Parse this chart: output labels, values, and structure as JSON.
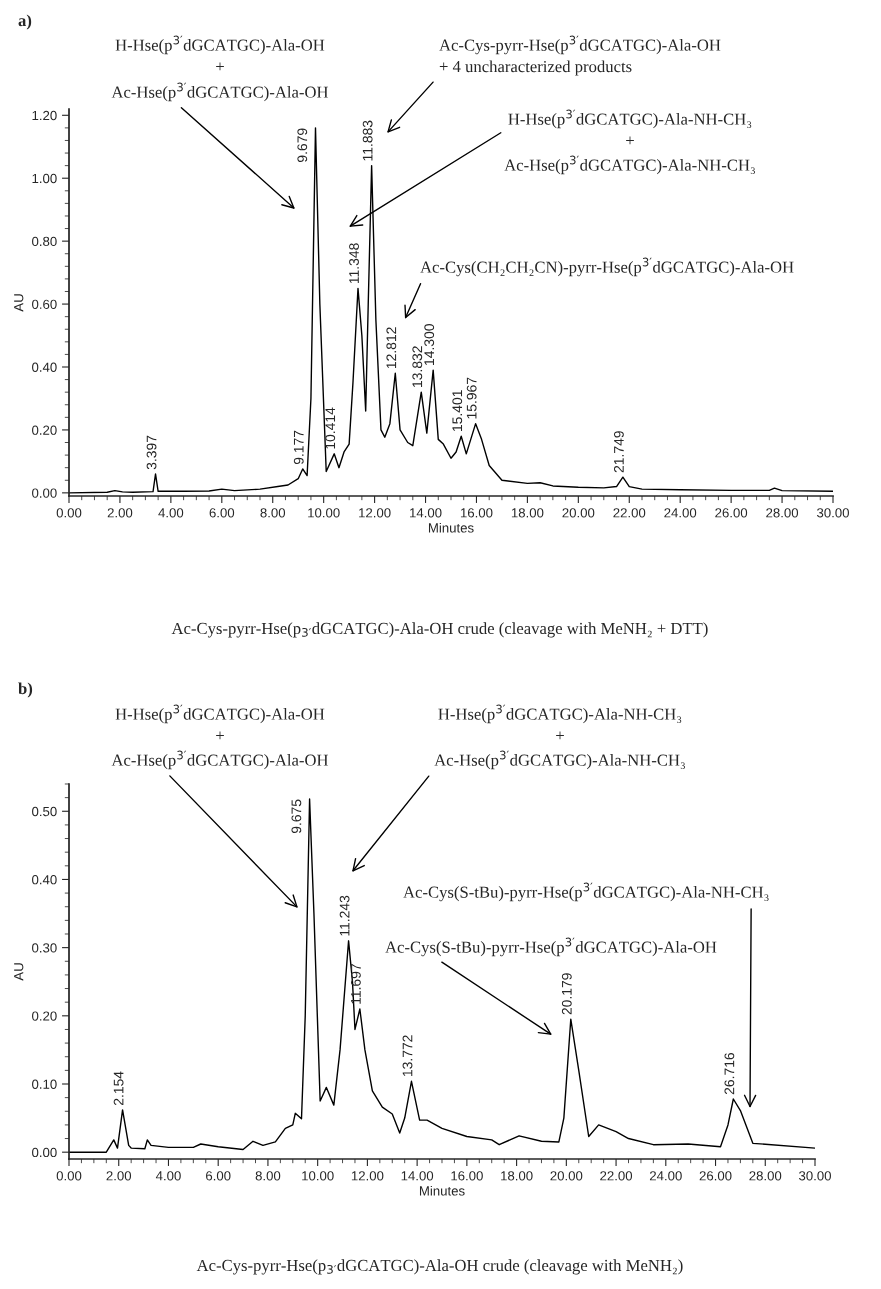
{
  "chart_data": [
    {
      "type": "line",
      "title": "a)",
      "xlabel": "Minutes",
      "ylabel": "AU",
      "series": [
        {
          "color": "#000000",
          "x": [
            0,
            1.5,
            1.8,
            2.1,
            2.5,
            3.3,
            3.397,
            3.5,
            4.5,
            5.5,
            6.0,
            6.5,
            7.5,
            8.2,
            8.6,
            9.0,
            9.177,
            9.35,
            9.5,
            9.679,
            9.85,
            10.1,
            10.414,
            10.6,
            10.8,
            11.0,
            11.15,
            11.348,
            11.5,
            11.65,
            11.75,
            11.883,
            12.05,
            12.25,
            12.4,
            12.6,
            12.812,
            13.0,
            13.3,
            13.5,
            13.832,
            14.05,
            14.3,
            14.5,
            14.7,
            15.0,
            15.2,
            15.401,
            15.6,
            15.967,
            16.2,
            16.5,
            17.0,
            18.0,
            18.5,
            19.0,
            20.0,
            21.0,
            21.5,
            21.749,
            22.0,
            22.5,
            24.0,
            26.0,
            27.5,
            27.7,
            28.0,
            30.0
          ],
          "values": [
            0.0,
            0.002,
            0.007,
            0.003,
            0.002,
            0.004,
            0.06,
            0.005,
            0.005,
            0.006,
            0.012,
            0.007,
            0.012,
            0.02,
            0.025,
            0.045,
            0.076,
            0.055,
            0.3,
            1.16,
            0.6,
            0.068,
            0.124,
            0.08,
            0.13,
            0.155,
            0.35,
            0.65,
            0.5,
            0.26,
            0.6,
            1.04,
            0.55,
            0.2,
            0.177,
            0.22,
            0.38,
            0.2,
            0.16,
            0.15,
            0.32,
            0.19,
            0.39,
            0.17,
            0.155,
            0.11,
            0.13,
            0.18,
            0.124,
            0.22,
            0.17,
            0.087,
            0.04,
            0.03,
            0.032,
            0.022,
            0.018,
            0.016,
            0.02,
            0.05,
            0.02,
            0.012,
            0.01,
            0.008,
            0.008,
            0.015,
            0.007,
            0.005
          ]
        }
      ],
      "xlim": [
        0,
        30
      ],
      "ylim": [
        -0.01,
        1.22
      ],
      "xticks": [
        {
          "value": 0,
          "label": "0.00"
        },
        {
          "value": 2,
          "label": "2.00"
        },
        {
          "value": 4,
          "label": "4.00"
        },
        {
          "value": 6,
          "label": "6.00"
        },
        {
          "value": 8,
          "label": "8.00"
        },
        {
          "value": 10,
          "label": "10.00"
        },
        {
          "value": 12,
          "label": "12.00"
        },
        {
          "value": 14,
          "label": "14.00"
        },
        {
          "value": 16,
          "label": "16.00"
        },
        {
          "value": 18,
          "label": "18.00"
        },
        {
          "value": 20,
          "label": "20.00"
        },
        {
          "value": 22,
          "label": "22.00"
        },
        {
          "value": 24,
          "label": "24.00"
        },
        {
          "value": 26,
          "label": "26.00"
        },
        {
          "value": 28,
          "label": "28.00"
        },
        {
          "value": 30,
          "label": "30.00"
        }
      ],
      "yticks": [
        {
          "value": 0,
          "label": "0.00"
        },
        {
          "value": 0.2,
          "label": "0.20"
        },
        {
          "value": 0.4,
          "label": "0.40"
        },
        {
          "value": 0.6,
          "label": "0.60"
        },
        {
          "value": 0.8,
          "label": "0.80"
        },
        {
          "value": 1.0,
          "label": "1.00"
        },
        {
          "value": 1.2,
          "label": "1.20"
        }
      ],
      "annotations": [
        "H-Hse(p$^{3′}$dGCATGC)-Ala-OH",
        "+",
        "Ac-Hse(p$^{3′}$dGCATGC)-Ala-OH",
        "Ac-Cys-pyrr-Hse(p$^{3′}$dGCATGC)-Ala-OH",
        "+ 4 uncharacterized products",
        "H-Hse(p$^{3′}$dGCATGC)-Ala-NH-CH₃",
        "+",
        "Ac-Hse(p$^{3′}$dGCATGC)-Ala-NH-CH₃",
        "Ac-Cys(CH₂CH₂CN)-pyrr-Hse(p$^{3′}$dGCATGC)-Ala-OH",
        {
          "text": "3.397",
          "x": 3.397,
          "y": 0.06
        },
        {
          "text": "9.177",
          "x": 9.177,
          "y": 0.076
        },
        {
          "text": "9.679",
          "x": 9.679,
          "y": 1.16
        },
        {
          "text": "10.414",
          "x": 10.414,
          "y": 0.124
        },
        {
          "text": "11.348",
          "x": 11.348,
          "y": 0.65
        },
        {
          "text": "11.883",
          "x": 11.883,
          "y": 1.04
        },
        {
          "text": "12.812",
          "x": 12.812,
          "y": 0.38
        },
        {
          "text": "13.832",
          "x": 13.832,
          "y": 0.32
        },
        {
          "text": "14.300",
          "x": 14.3,
          "y": 0.39
        },
        {
          "text": "15.401",
          "x": 15.401,
          "y": 0.18
        },
        {
          "text": "15.967",
          "x": 15.967,
          "y": 0.22
        },
        {
          "text": "21.749",
          "x": 21.749,
          "y": 0.05
        },
        "Ac-Cys-pyrr-Hse(p$_{3′}$dGCATGC)-Ala-OH crude (cleavage with MeNH₂ + DTT)"
      ]
    },
    {
      "type": "line",
      "title": "b)",
      "xlabel": "Minutes",
      "ylabel": "AU",
      "series": [
        {
          "color": "#000000",
          "x": [
            0,
            1.5,
            1.8,
            1.95,
            2.154,
            2.4,
            2.5,
            3.05,
            3.15,
            3.3,
            4.0,
            5.0,
            5.3,
            6.0,
            7.0,
            7.4,
            7.8,
            8.3,
            8.7,
            9.0,
            9.1,
            9.35,
            9.5,
            9.675,
            9.85,
            10.1,
            10.35,
            10.65,
            10.9,
            11.243,
            11.4,
            11.5,
            11.697,
            11.9,
            12.2,
            12.6,
            13.0,
            13.3,
            13.5,
            13.772,
            14.1,
            14.4,
            15.0,
            16.0,
            17.0,
            17.3,
            18.1,
            19.0,
            19.7,
            19.9,
            20.179,
            20.5,
            20.9,
            21.3,
            22.0,
            22.5,
            23.5,
            24.9,
            26.2,
            26.5,
            26.716,
            27.0,
            27.5,
            30.0
          ],
          "values": [
            0.0,
            0.0,
            0.018,
            0.006,
            0.062,
            0.01,
            0.006,
            0.005,
            0.018,
            0.01,
            0.007,
            0.007,
            0.012,
            0.008,
            0.004,
            0.016,
            0.01,
            0.015,
            0.035,
            0.04,
            0.057,
            0.049,
            0.2,
            0.518,
            0.35,
            0.075,
            0.095,
            0.069,
            0.15,
            0.31,
            0.25,
            0.18,
            0.21,
            0.15,
            0.09,
            0.066,
            0.056,
            0.028,
            0.05,
            0.104,
            0.047,
            0.047,
            0.035,
            0.023,
            0.018,
            0.011,
            0.024,
            0.016,
            0.015,
            0.05,
            0.195,
            0.12,
            0.023,
            0.04,
            0.03,
            0.02,
            0.011,
            0.012,
            0.008,
            0.04,
            0.078,
            0.061,
            0.013,
            0.006
          ]
        }
      ],
      "xlim": [
        0,
        30
      ],
      "ylim": [
        -0.01,
        0.54
      ],
      "xticks": [
        {
          "value": 0,
          "label": "0.00"
        },
        {
          "value": 2,
          "label": "2.00"
        },
        {
          "value": 4,
          "label": "4.00"
        },
        {
          "value": 6,
          "label": "6.00"
        },
        {
          "value": 8,
          "label": "8.00"
        },
        {
          "value": 10,
          "label": "10.00"
        },
        {
          "value": 12,
          "label": "12.00"
        },
        {
          "value": 14,
          "label": "14.00"
        },
        {
          "value": 16,
          "label": "16.00"
        },
        {
          "value": 18,
          "label": "18.00"
        },
        {
          "value": 20,
          "label": "20.00"
        },
        {
          "value": 22,
          "label": "22.00"
        },
        {
          "value": 24,
          "label": "24.00"
        },
        {
          "value": 26,
          "label": "26.00"
        },
        {
          "value": 28,
          "label": "28.00"
        },
        {
          "value": 30,
          "label": "30.00"
        }
      ],
      "yticks": [
        {
          "value": 0,
          "label": "0.00"
        },
        {
          "value": 0.1,
          "label": "0.10"
        },
        {
          "value": 0.2,
          "label": "0.20"
        },
        {
          "value": 0.3,
          "label": "0.30"
        },
        {
          "value": 0.4,
          "label": "0.40"
        },
        {
          "value": 0.5,
          "label": "0.50"
        }
      ],
      "annotations": [
        "H-Hse(p$^{3′}$dGCATGC)-Ala-OH",
        "+",
        "Ac-Hse(p$^{3′}$dGCATGC)-Ala-OH",
        "H-Hse(p$^{3′}$dGCATGC)-Ala-NH-CH₃",
        "+",
        "Ac-Hse(p$^{3′}$dGCATGC)-Ala-NH-CH₃",
        "Ac-Cys(S-tBu)-pyrr-Hse(p$^{3′}$dGCATGC)-Ala-NH-CH₃",
        "Ac-Cys(S-tBu)-pyrr-Hse(p$^{3′}$dGCATGC)-Ala-OH",
        {
          "text": "2.154",
          "x": 2.154,
          "y": 0.062
        },
        {
          "text": "9.675",
          "x": 9.675,
          "y": 0.518
        },
        {
          "text": "11.243",
          "x": 11.243,
          "y": 0.31
        },
        {
          "text": "11.697",
          "x": 11.697,
          "y": 0.21
        },
        {
          "text": "13.772",
          "x": 13.772,
          "y": 0.104
        },
        {
          "text": "20.179",
          "x": 20.179,
          "y": 0.195
        },
        {
          "text": "26.716",
          "x": 26.716,
          "y": 0.078
        },
        "Ac-Cys-pyrr-Hse(p$_{3′}$dGCATGC)-Ala-OH crude (cleavage with MeNH₂)"
      ]
    }
  ]
}
